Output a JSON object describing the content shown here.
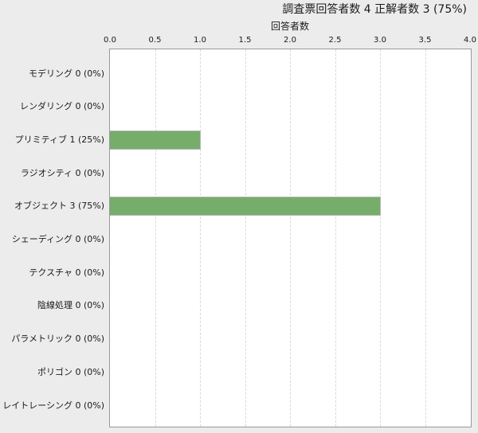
{
  "header": {
    "title": "調査票回答者数 4  正解者数 3 (75%)",
    "respondent_count": 4,
    "correct_count": 3,
    "correct_percent": "75%"
  },
  "chart_data": {
    "type": "bar",
    "orientation": "horizontal",
    "axis_title": "回答者数",
    "categories": [
      "モデリング",
      "レンダリング",
      "プリミティブ",
      "ラジオシティ",
      "オブジェクト",
      "シェーディング",
      "テクスチャ",
      "陰線処理",
      "パラメトリック",
      "ポリゴン",
      "レイトレーシング"
    ],
    "values": [
      0,
      0,
      1,
      0,
      3,
      0,
      0,
      0,
      0,
      0,
      0
    ],
    "percents": [
      "0%",
      "0%",
      "25%",
      "0%",
      "75%",
      "0%",
      "0%",
      "0%",
      "0%",
      "0%",
      "0%"
    ],
    "row_labels": [
      "モデリング 0 (0%)",
      "レンダリング 0 (0%)",
      "プリミティブ 1 (25%)",
      "ラジオシティ 0 (0%)",
      "オブジェクト 3 (75%)",
      "シェーディング 0 (0%)",
      "テクスチャ 0 (0%)",
      "陰線処理 0 (0%)",
      "パラメトリック 0 (0%)",
      "ポリゴン 0 (0%)",
      "レイトレーシング 0 (0%)"
    ],
    "x_ticks": [
      "0.0",
      "0.5",
      "1.0",
      "1.5",
      "2.0",
      "2.5",
      "3.0",
      "3.5",
      "4.0"
    ],
    "xlim": [
      0,
      4
    ],
    "grid": {
      "axis": "x",
      "style": "dashed"
    },
    "legend": "none",
    "colors": {
      "page_bg": "#ececec",
      "plot_bg": "#ffffff",
      "plot_border": "#999999",
      "grid_line": "#d9d9d9",
      "bar_fill": "#76ad6b",
      "bar_border": "#b5b5b5",
      "text": "#1a1a1a"
    }
  }
}
